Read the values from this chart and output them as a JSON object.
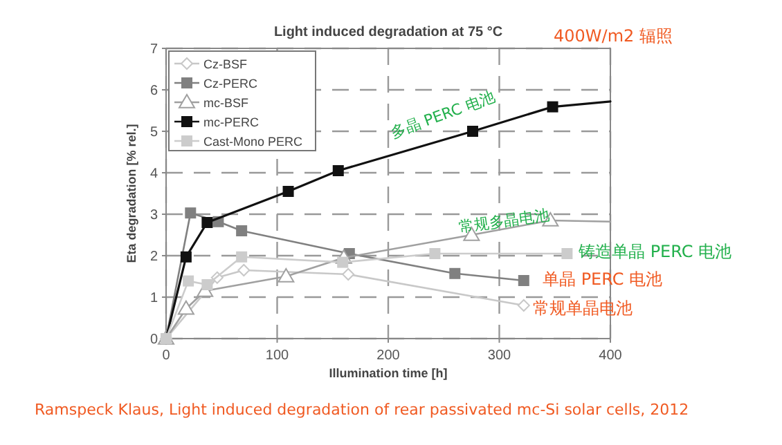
{
  "chart_data": {
    "type": "line",
    "title": "Light induced degradation at 75 °C",
    "xlabel": "Illumination time [h]",
    "ylabel": "Eta degradation [% rel.]",
    "xlim": [
      0,
      400
    ],
    "xticks": [
      0,
      100,
      200,
      300,
      400
    ],
    "ylim": [
      0,
      7
    ],
    "yticks": [
      0,
      1,
      2,
      3,
      4,
      5,
      6,
      7
    ],
    "grid": true,
    "legend": "top left",
    "series": [
      {
        "name": "Cz-BSF",
        "color": "#c8c8c8",
        "marker": "diamond",
        "x": [
          0,
          46,
          70,
          164,
          322
        ],
        "values": [
          0,
          1.47,
          1.65,
          1.55,
          0.8
        ]
      },
      {
        "name": "Cz-PERC",
        "color": "#808080",
        "marker": "square",
        "x": [
          0,
          22,
          47,
          68,
          165,
          260,
          322
        ],
        "values": [
          0,
          3.03,
          2.82,
          2.6,
          2.05,
          1.57,
          1.4
        ]
      },
      {
        "name": "mc-BSF",
        "color": "#a0a0a0",
        "marker": "triangle",
        "x": [
          0,
          18,
          35,
          108,
          160,
          275,
          346,
          400
        ],
        "values": [
          0,
          0.72,
          1.15,
          1.5,
          1.95,
          2.5,
          2.85,
          2.82
        ]
      },
      {
        "name": "mc-PERC",
        "color": "#111111",
        "marker": "square",
        "x": [
          0,
          18,
          37,
          110,
          155,
          276,
          348,
          400
        ],
        "values": [
          0,
          1.97,
          2.8,
          3.55,
          4.05,
          5.0,
          5.59,
          5.72
        ]
      },
      {
        "name": "Cast-Mono PERC",
        "color": "#cccccc",
        "marker": "square",
        "x": [
          0,
          20,
          37,
          68,
          159,
          242,
          361
        ],
        "values": [
          0,
          1.39,
          1.3,
          1.97,
          1.84,
          2.05,
          2.05
        ]
      }
    ],
    "annotations": [
      "400W/m2 辐照",
      "多晶 PERC 电池",
      "常规多晶电池",
      "铸造单晶 PERC 电池",
      "单晶 PERC 电池",
      "常规单晶电池",
      "Ramspeck Klaus, Light induced degradation of rear passivated mc-Si solar cells, 2012"
    ]
  }
}
